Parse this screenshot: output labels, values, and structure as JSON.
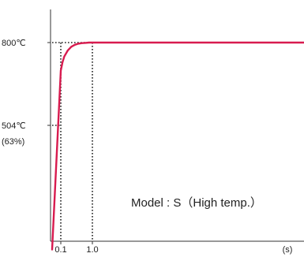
{
  "chart_data": {
    "type": "line",
    "title": "",
    "xlabel": "",
    "ylabel": "",
    "x_unit": "(s)",
    "x_ticks": [
      {
        "value": 0.1,
        "label": "0.1"
      },
      {
        "value": 1.0,
        "label": "1.0"
      }
    ],
    "y_ticks": [
      {
        "value": 800,
        "label": "800℃",
        "sub": ""
      },
      {
        "value": 504,
        "label": "504℃",
        "sub": "(63%)"
      }
    ],
    "annotation": "Model : S（High temp.）",
    "line_color": "#d81b4f",
    "series": [
      {
        "name": "",
        "x": [
          0.0,
          0.1,
          0.15,
          0.2,
          0.3,
          0.4,
          0.5,
          0.6,
          0.7,
          0.8,
          0.9,
          1.0,
          2.0,
          4.0,
          6.6
        ],
        "y": [
          60,
          700,
          730,
          750,
          772,
          785,
          792,
          796,
          798,
          799,
          800,
          800,
          800,
          800,
          800
        ]
      }
    ]
  }
}
